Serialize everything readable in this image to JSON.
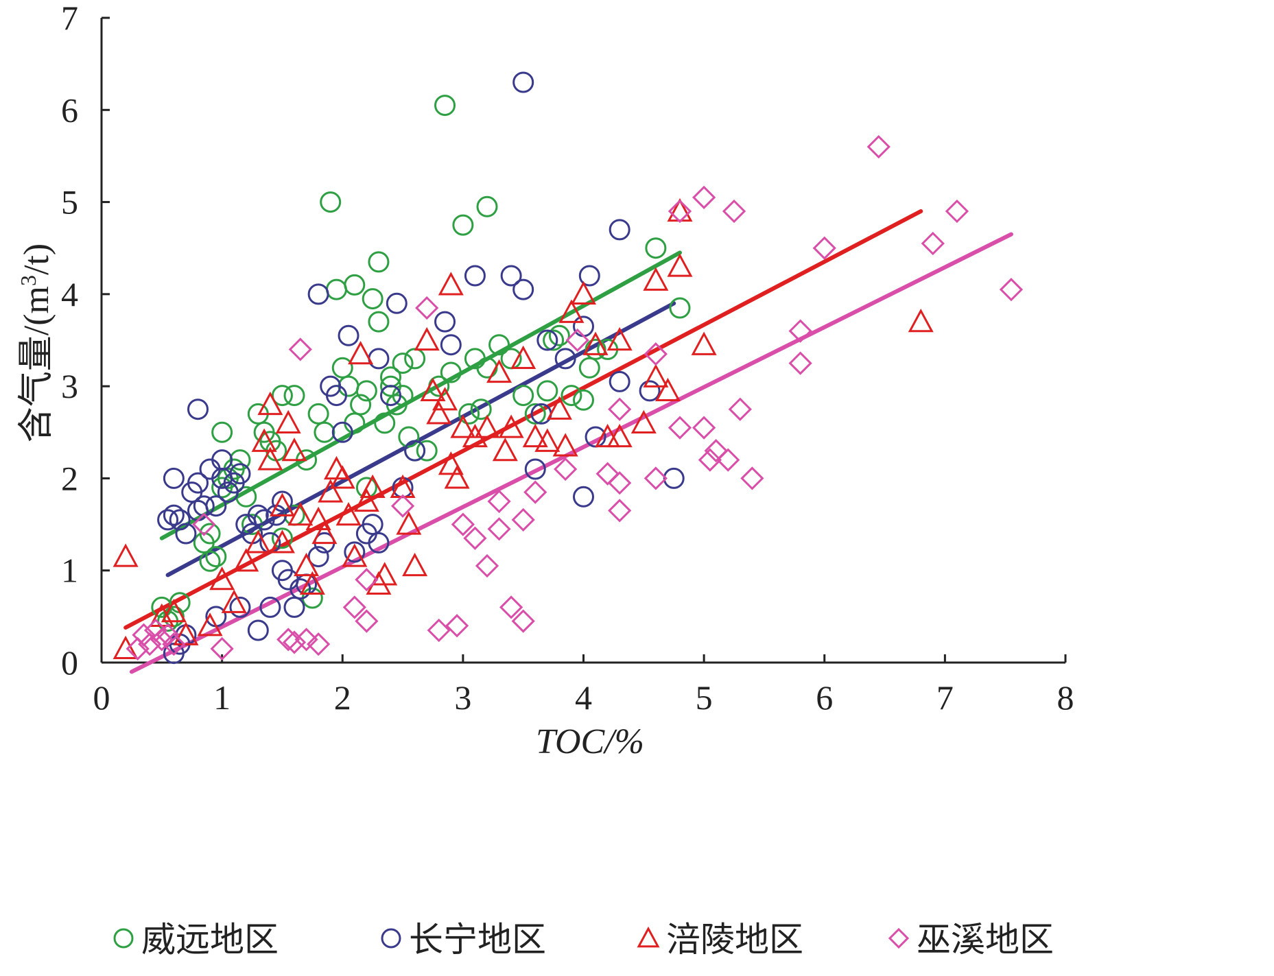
{
  "chart_data": {
    "type": "scatter",
    "xlabel": "TOC/%",
    "ylabel_main": "含气量/(m",
    "ylabel_sup": "3",
    "ylabel_tail": "/t)",
    "xlim": [
      0,
      8
    ],
    "ylim": [
      0,
      7
    ],
    "x_ticks": [
      "0",
      "1",
      "2",
      "3",
      "4",
      "5",
      "6",
      "7",
      "8"
    ],
    "y_ticks": [
      "0",
      "1",
      "2",
      "3",
      "4",
      "5",
      "6",
      "7"
    ],
    "grid": false,
    "legend_position": "bottom",
    "series": [
      {
        "name": "威远地区",
        "marker": "circle",
        "color": "#2ea043",
        "trend": {
          "x": [
            0.5,
            4.8
          ],
          "y": [
            1.35,
            4.45
          ]
        },
        "points": [
          [
            0.5,
            0.6
          ],
          [
            0.6,
            0.5
          ],
          [
            0.65,
            0.65
          ],
          [
            0.55,
            0.45
          ],
          [
            0.9,
            1.1
          ],
          [
            0.95,
            1.15
          ],
          [
            0.85,
            1.3
          ],
          [
            0.9,
            1.4
          ],
          [
            1.0,
            2.5
          ],
          [
            1.0,
            1.9
          ],
          [
            1.05,
            2.0
          ],
          [
            1.1,
            2.1
          ],
          [
            1.15,
            2.2
          ],
          [
            1.2,
            1.8
          ],
          [
            1.25,
            1.5
          ],
          [
            1.3,
            2.7
          ],
          [
            1.35,
            2.5
          ],
          [
            1.4,
            2.4
          ],
          [
            1.45,
            2.3
          ],
          [
            1.5,
            2.9
          ],
          [
            1.6,
            2.9
          ],
          [
            1.6,
            1.6
          ],
          [
            1.7,
            2.2
          ],
          [
            1.75,
            0.7
          ],
          [
            1.8,
            2.7
          ],
          [
            1.85,
            2.5
          ],
          [
            1.9,
            5.0
          ],
          [
            1.95,
            4.05
          ],
          [
            2.0,
            3.2
          ],
          [
            2.05,
            3.0
          ],
          [
            2.1,
            2.6
          ],
          [
            2.1,
            4.1
          ],
          [
            2.15,
            2.8
          ],
          [
            2.2,
            2.95
          ],
          [
            2.25,
            3.95
          ],
          [
            2.3,
            3.7
          ],
          [
            2.3,
            4.35
          ],
          [
            2.35,
            2.6
          ],
          [
            2.4,
            3.0
          ],
          [
            2.4,
            3.1
          ],
          [
            2.45,
            2.8
          ],
          [
            2.5,
            2.9
          ],
          [
            2.5,
            3.25
          ],
          [
            2.55,
            2.45
          ],
          [
            2.6,
            3.3
          ],
          [
            2.6,
            2.3
          ],
          [
            2.7,
            2.3
          ],
          [
            2.8,
            3.0
          ],
          [
            2.85,
            6.05
          ],
          [
            2.9,
            3.15
          ],
          [
            3.0,
            4.75
          ],
          [
            3.05,
            2.7
          ],
          [
            3.1,
            3.3
          ],
          [
            3.15,
            2.75
          ],
          [
            3.2,
            4.95
          ],
          [
            3.2,
            3.2
          ],
          [
            3.3,
            3.45
          ],
          [
            3.4,
            3.3
          ],
          [
            3.5,
            2.9
          ],
          [
            3.6,
            2.7
          ],
          [
            3.7,
            2.95
          ],
          [
            3.75,
            3.5
          ],
          [
            3.8,
            3.55
          ],
          [
            3.9,
            2.9
          ],
          [
            4.0,
            2.85
          ],
          [
            4.05,
            3.2
          ],
          [
            4.1,
            3.4
          ],
          [
            4.2,
            3.4
          ],
          [
            4.6,
            4.5
          ],
          [
            4.8,
            3.85
          ],
          [
            2.2,
            1.9
          ],
          [
            1.5,
            1.35
          ]
        ]
      },
      {
        "name": "长宁地区",
        "marker": "circle",
        "color": "#3a3a8c",
        "trend": {
          "x": [
            0.55,
            4.75
          ],
          "y": [
            0.95,
            3.9
          ]
        },
        "points": [
          [
            0.55,
            1.55
          ],
          [
            0.6,
            1.6
          ],
          [
            0.6,
            2.0
          ],
          [
            0.65,
            1.55
          ],
          [
            0.7,
            1.4
          ],
          [
            0.75,
            1.85
          ],
          [
            0.8,
            1.95
          ],
          [
            0.8,
            1.65
          ],
          [
            0.85,
            1.7
          ],
          [
            0.8,
            2.75
          ],
          [
            0.9,
            2.1
          ],
          [
            0.95,
            1.7
          ],
          [
            1.0,
            2.0
          ],
          [
            1.0,
            2.2
          ],
          [
            1.05,
            1.85
          ],
          [
            1.1,
            1.95
          ],
          [
            1.15,
            2.05
          ],
          [
            1.2,
            1.5
          ],
          [
            1.25,
            1.4
          ],
          [
            1.3,
            1.6
          ],
          [
            1.35,
            1.55
          ],
          [
            1.4,
            1.3
          ],
          [
            1.45,
            1.6
          ],
          [
            1.5,
            1.75
          ],
          [
            1.5,
            1.0
          ],
          [
            1.55,
            0.9
          ],
          [
            1.6,
            0.6
          ],
          [
            1.65,
            0.8
          ],
          [
            1.7,
            0.85
          ],
          [
            1.8,
            1.15
          ],
          [
            1.85,
            1.3
          ],
          [
            1.8,
            4.0
          ],
          [
            1.9,
            3.0
          ],
          [
            1.95,
            2.9
          ],
          [
            2.0,
            2.5
          ],
          [
            2.05,
            3.55
          ],
          [
            2.1,
            1.2
          ],
          [
            2.2,
            1.4
          ],
          [
            2.25,
            1.5
          ],
          [
            2.3,
            1.3
          ],
          [
            2.3,
            3.3
          ],
          [
            2.4,
            2.9
          ],
          [
            2.45,
            3.9
          ],
          [
            2.5,
            1.9
          ],
          [
            2.6,
            2.3
          ],
          [
            2.85,
            3.7
          ],
          [
            2.9,
            3.45
          ],
          [
            3.1,
            4.2
          ],
          [
            3.4,
            4.2
          ],
          [
            3.5,
            4.05
          ],
          [
            3.5,
            6.3
          ],
          [
            3.6,
            2.1
          ],
          [
            3.65,
            2.7
          ],
          [
            3.7,
            3.5
          ],
          [
            3.85,
            3.3
          ],
          [
            4.0,
            3.65
          ],
          [
            4.05,
            4.2
          ],
          [
            4.1,
            2.45
          ],
          [
            4.3,
            3.05
          ],
          [
            4.3,
            4.7
          ],
          [
            4.55,
            2.95
          ],
          [
            4.75,
            2.0
          ],
          [
            4.0,
            1.8
          ],
          [
            0.6,
            0.1
          ],
          [
            0.65,
            0.2
          ],
          [
            0.7,
            0.3
          ],
          [
            1.3,
            0.35
          ],
          [
            1.4,
            0.6
          ],
          [
            1.15,
            0.6
          ],
          [
            0.95,
            0.5
          ]
        ]
      },
      {
        "name": "涪陵地区",
        "marker": "triangle",
        "color": "#e02020",
        "trend": {
          "x": [
            0.2,
            6.8
          ],
          "y": [
            0.38,
            4.9
          ]
        },
        "points": [
          [
            0.2,
            1.15
          ],
          [
            0.2,
            0.15
          ],
          [
            0.5,
            0.5
          ],
          [
            0.6,
            0.55
          ],
          [
            0.7,
            0.3
          ],
          [
            0.9,
            0.4
          ],
          [
            1.0,
            0.9
          ],
          [
            1.1,
            0.65
          ],
          [
            1.2,
            1.1
          ],
          [
            1.3,
            1.3
          ],
          [
            1.35,
            2.4
          ],
          [
            1.4,
            2.2
          ],
          [
            1.4,
            2.8
          ],
          [
            1.5,
            1.3
          ],
          [
            1.5,
            1.7
          ],
          [
            1.55,
            2.6
          ],
          [
            1.6,
            2.3
          ],
          [
            1.65,
            1.6
          ],
          [
            1.7,
            1.05
          ],
          [
            1.75,
            0.85
          ],
          [
            1.8,
            1.55
          ],
          [
            1.85,
            1.4
          ],
          [
            1.9,
            1.85
          ],
          [
            1.95,
            2.1
          ],
          [
            2.0,
            2.0
          ],
          [
            2.05,
            1.6
          ],
          [
            2.1,
            1.15
          ],
          [
            2.15,
            3.35
          ],
          [
            2.2,
            1.75
          ],
          [
            2.25,
            1.9
          ],
          [
            2.3,
            0.85
          ],
          [
            2.35,
            0.95
          ],
          [
            2.5,
            1.9
          ],
          [
            2.55,
            1.5
          ],
          [
            2.6,
            1.05
          ],
          [
            2.7,
            3.5
          ],
          [
            2.75,
            2.95
          ],
          [
            2.8,
            2.7
          ],
          [
            2.85,
            2.85
          ],
          [
            2.9,
            2.15
          ],
          [
            2.9,
            4.1
          ],
          [
            2.95,
            2.0
          ],
          [
            3.0,
            2.55
          ],
          [
            3.1,
            2.45
          ],
          [
            3.2,
            2.55
          ],
          [
            3.3,
            3.15
          ],
          [
            3.35,
            2.3
          ],
          [
            3.4,
            2.55
          ],
          [
            3.5,
            3.3
          ],
          [
            3.6,
            2.45
          ],
          [
            3.7,
            2.4
          ],
          [
            3.8,
            2.75
          ],
          [
            3.85,
            2.35
          ],
          [
            3.9,
            3.8
          ],
          [
            4.0,
            4.0
          ],
          [
            4.1,
            3.45
          ],
          [
            4.2,
            2.45
          ],
          [
            4.3,
            3.5
          ],
          [
            4.5,
            2.6
          ],
          [
            4.6,
            4.15
          ],
          [
            4.7,
            2.95
          ],
          [
            4.8,
            4.9
          ],
          [
            4.8,
            4.3
          ],
          [
            5.0,
            3.45
          ],
          [
            6.8,
            3.7
          ],
          [
            4.6,
            3.1
          ],
          [
            4.3,
            2.45
          ]
        ]
      },
      {
        "name": "巫溪地区",
        "marker": "diamond",
        "color": "#d94ea8",
        "trend": {
          "x": [
            0.25,
            7.55
          ],
          "y": [
            -0.1,
            4.65
          ]
        },
        "points": [
          [
            0.3,
            0.15
          ],
          [
            0.35,
            0.3
          ],
          [
            0.4,
            0.2
          ],
          [
            0.45,
            0.35
          ],
          [
            0.5,
            0.25
          ],
          [
            0.55,
            0.3
          ],
          [
            0.6,
            0.2
          ],
          [
            1.0,
            0.15
          ],
          [
            1.55,
            0.25
          ],
          [
            1.6,
            0.22
          ],
          [
            1.7,
            0.25
          ],
          [
            1.8,
            0.2
          ],
          [
            2.1,
            0.6
          ],
          [
            2.2,
            0.45
          ],
          [
            2.2,
            0.9
          ],
          [
            2.7,
            3.85
          ],
          [
            2.8,
            0.35
          ],
          [
            2.95,
            0.4
          ],
          [
            3.0,
            1.5
          ],
          [
            3.1,
            1.35
          ],
          [
            3.2,
            1.05
          ],
          [
            3.3,
            1.75
          ],
          [
            3.3,
            1.45
          ],
          [
            3.4,
            0.6
          ],
          [
            3.5,
            0.45
          ],
          [
            3.5,
            1.55
          ],
          [
            3.6,
            1.85
          ],
          [
            3.85,
            2.1
          ],
          [
            3.95,
            3.5
          ],
          [
            4.2,
            2.05
          ],
          [
            4.3,
            1.95
          ],
          [
            4.3,
            1.65
          ],
          [
            4.3,
            2.75
          ],
          [
            4.6,
            3.35
          ],
          [
            4.6,
            2.0
          ],
          [
            4.8,
            2.55
          ],
          [
            5.0,
            2.55
          ],
          [
            5.05,
            2.2
          ],
          [
            5.1,
            2.3
          ],
          [
            5.2,
            2.2
          ],
          [
            5.25,
            4.9
          ],
          [
            5.3,
            2.75
          ],
          [
            5.4,
            2.0
          ],
          [
            5.0,
            5.05
          ],
          [
            4.8,
            4.9
          ],
          [
            5.8,
            3.6
          ],
          [
            5.8,
            3.25
          ],
          [
            6.0,
            4.5
          ],
          [
            6.45,
            5.6
          ],
          [
            6.9,
            4.55
          ],
          [
            7.1,
            4.9
          ],
          [
            7.55,
            4.05
          ],
          [
            1.65,
            3.4
          ],
          [
            0.85,
            1.5
          ],
          [
            2.5,
            1.7
          ]
        ]
      }
    ]
  }
}
